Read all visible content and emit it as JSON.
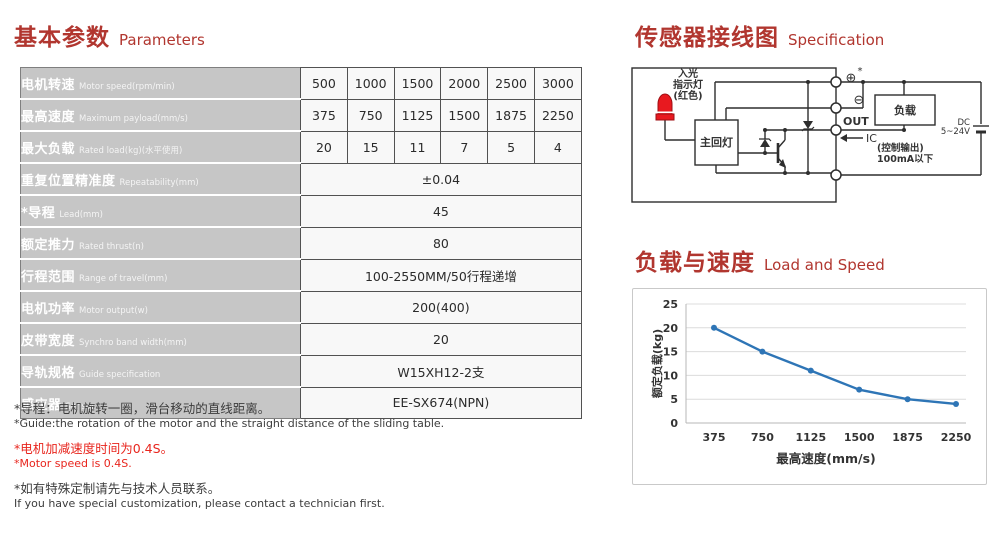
{
  "parameters": {
    "title_zh": "基本参数",
    "title_en": "Parameters",
    "table": {
      "rows": [
        {
          "label_zh": "电机转速",
          "label_en": "Motor speed(rpm/min)",
          "values": [
            "500",
            "1000",
            "1500",
            "2000",
            "2500",
            "3000"
          ]
        },
        {
          "label_zh": "最高速度",
          "label_en": "Maximum payload(mm/s)",
          "values": [
            "375",
            "750",
            "1125",
            "1500",
            "1875",
            "2250"
          ]
        },
        {
          "label_zh": "最大负载",
          "label_en": "Rated load(kg)(水平使用)",
          "values": [
            "20",
            "15",
            "11",
            "7",
            "5",
            "4"
          ]
        },
        {
          "label_zh": "重复位置精准度",
          "label_en": "Repeatability(mm)",
          "value": "±0.04"
        },
        {
          "label_zh": "*导程",
          "label_en": "Lead(mm)",
          "value": "45"
        },
        {
          "label_zh": "额定推力",
          "label_en": "Rated thrust(n)",
          "value": "80"
        },
        {
          "label_zh": "行程范围",
          "label_en": "Range of travel(mm)",
          "value": "100-2550MM/50行程递增"
        },
        {
          "label_zh": "电机功率",
          "label_en": "Motor output(w)",
          "value": "200(400)"
        },
        {
          "label_zh": "皮带宽度",
          "label_en": "Synchro band width(mm)",
          "value": "20"
        },
        {
          "label_zh": "导轨规格",
          "label_en": "Guide specification",
          "value": "W15XH12-2支"
        },
        {
          "label_zh": "感应器",
          "label_en": "Sensor",
          "value": "EE-SX674(NPN)"
        }
      ]
    },
    "footnotes": [
      {
        "zh": "*导程：电机旋转一圈，滑台移动的直线距离。",
        "en": "*Guide:the rotation of the motor and the straight distance of the sliding table.",
        "color": "dark"
      },
      {
        "zh": "*电机加减速度时间为0.4S。",
        "en": "*Motor speed is 0.4S.",
        "color": "red"
      },
      {
        "zh": "*如有特殊定制请先与技术人员联系。",
        "en": "If you have special customization, please contact a technician first.",
        "color": "dark"
      }
    ]
  },
  "wiring": {
    "title_zh": "传感器接线图",
    "title_en": "Specification",
    "labels": {
      "led_line1": "入光",
      "led_line2": "指示灯",
      "led_line3": "(红色)",
      "main_box": "主回灯",
      "plus_terminal": "⊕",
      "plus_star": "*",
      "minus_terminal": "⊖",
      "out": "OUT",
      "ic": "IC",
      "load": "负载",
      "control_line1": "(控制输出)",
      "control_line2": "100mA以下",
      "dc_line1": "DC",
      "dc_line2": "5~24V"
    }
  },
  "load_speed": {
    "title_zh": "负载与速度",
    "title_en": "Load and Speed"
  },
  "chart_data": {
    "type": "line",
    "x": [
      375,
      750,
      1125,
      1500,
      1875,
      2250
    ],
    "series": [
      {
        "name": "额定负载",
        "values": [
          20,
          15,
          11,
          7,
          5,
          4
        ]
      }
    ],
    "xlabel": "最高速度(mm/s)",
    "ylabel": "额定负载(kg)",
    "ylim": [
      0,
      25
    ],
    "yticks": [
      0,
      5,
      10,
      15,
      20,
      25
    ],
    "grid": true,
    "legend": "none",
    "line_color": "#2e75b6"
  },
  "colors": {
    "accent_red": "#b1362f",
    "note_red": "#e8251d",
    "label_cell_bg": "#c6c6c6",
    "value_cell_bg": "#f8f8f8",
    "chart_line": "#2e75b6",
    "led_red": "#e8191f"
  }
}
